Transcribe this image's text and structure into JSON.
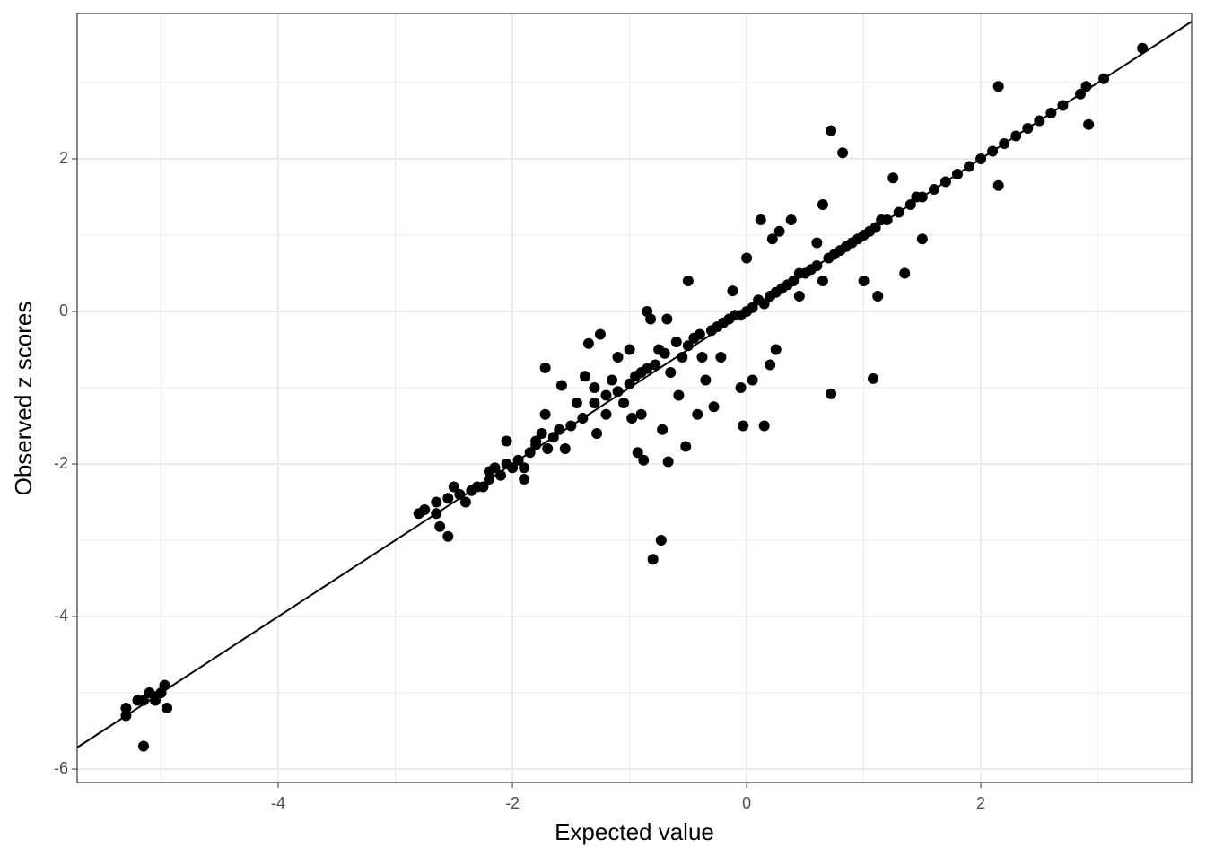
{
  "chart_data": {
    "type": "scatter",
    "x_label": "Expected value",
    "y_label": "Observed z scores",
    "xlim": [
      -5.717,
      3.8
    ],
    "ylim": [
      -6.176,
      3.906
    ],
    "xticks": [
      -4,
      -2,
      0,
      2
    ],
    "yticks": [
      -6,
      -4,
      -2,
      0,
      2
    ],
    "x_minor_ticks": [
      -5,
      -3,
      -1,
      1,
      3
    ],
    "y_minor_ticks": [
      -5,
      -3,
      -1,
      1,
      3
    ],
    "grid": true,
    "color": "#000000",
    "reference_line": {
      "slope": 1,
      "intercept": 0
    },
    "x": [
      -5.3,
      -5.3,
      -5.15,
      -5.1,
      -5.05,
      -5.0,
      -4.97,
      -4.95,
      -5.2,
      -5.15,
      -5.05,
      -2.8,
      -2.75,
      -2.65,
      -2.65,
      -2.62,
      -2.55,
      -2.55,
      -2.5,
      -2.45,
      -2.4,
      -2.35,
      -2.3,
      -2.25,
      -2.2,
      -2.2,
      -2.15,
      -2.1,
      -2.05,
      -2.0,
      -1.95,
      -1.9,
      -1.9,
      -2.05,
      -1.85,
      -1.8,
      -1.8,
      -1.75,
      -1.72,
      -1.7,
      -1.65,
      -1.6,
      -1.58,
      -1.72,
      -1.55,
      -1.5,
      -1.45,
      -1.4,
      -1.38,
      -1.35,
      -1.3,
      -1.3,
      -1.28,
      -1.25,
      -1.2,
      -1.2,
      -1.15,
      -1.1,
      -1.1,
      -1.05,
      -1.0,
      -1.0,
      -0.98,
      -0.95,
      -0.93,
      -0.9,
      -0.9,
      -0.88,
      -0.85,
      -0.85,
      -0.82,
      -0.8,
      -0.78,
      -0.75,
      -0.73,
      -0.72,
      -0.7,
      -0.68,
      -0.67,
      -0.65,
      -0.6,
      -0.58,
      -0.55,
      -0.52,
      -0.5,
      -0.5,
      -0.45,
      -0.42,
      -0.4,
      -0.38,
      -0.35,
      -0.3,
      -0.28,
      -0.25,
      -0.22,
      -0.2,
      -0.15,
      -0.12,
      -0.1,
      -0.05,
      -0.05,
      -0.03,
      0.0,
      0.0,
      0.05,
      0.05,
      0.1,
      0.12,
      0.15,
      0.15,
      0.2,
      0.2,
      0.22,
      0.25,
      0.25,
      0.28,
      0.3,
      0.35,
      0.38,
      0.4,
      0.45,
      0.45,
      0.5,
      0.55,
      0.6,
      0.6,
      0.65,
      0.65,
      0.7,
      0.72,
      0.72,
      0.75,
      0.8,
      0.82,
      0.85,
      0.9,
      0.95,
      1.0,
      1.0,
      1.05,
      1.08,
      1.1,
      1.12,
      1.15,
      1.2,
      1.25,
      1.3,
      1.35,
      1.4,
      1.45,
      1.5,
      1.5,
      1.6,
      1.7,
      1.8,
      1.9,
      2.0,
      2.1,
      2.15,
      2.15,
      2.2,
      2.3,
      2.4,
      2.5,
      2.6,
      2.7,
      2.85,
      2.9,
      2.92,
      3.05,
      3.38
    ],
    "y": [
      -5.2,
      -5.3,
      -5.1,
      -5.0,
      -5.05,
      -5.0,
      -4.9,
      -5.2,
      -5.1,
      -5.7,
      -5.1,
      -2.65,
      -2.6,
      -2.5,
      -2.65,
      -2.82,
      -2.95,
      -2.45,
      -2.3,
      -2.4,
      -2.5,
      -2.35,
      -2.3,
      -2.3,
      -2.2,
      -2.1,
      -2.05,
      -2.15,
      -2.0,
      -2.05,
      -1.95,
      -2.05,
      -2.2,
      -1.7,
      -1.85,
      -1.7,
      -1.75,
      -1.6,
      -1.35,
      -1.8,
      -1.65,
      -1.55,
      -0.97,
      -0.74,
      -1.8,
      -1.5,
      -1.2,
      -1.4,
      -0.85,
      -0.42,
      -1.0,
      -1.2,
      -1.6,
      -0.3,
      -1.1,
      -1.35,
      -0.9,
      -1.05,
      -0.6,
      -1.2,
      -0.95,
      -0.5,
      -1.4,
      -0.85,
      -1.85,
      -0.8,
      -1.35,
      -1.95,
      -0.75,
      0.0,
      -0.1,
      -3.25,
      -0.7,
      -0.5,
      -3.0,
      -1.55,
      -0.55,
      -0.1,
      -1.97,
      -0.8,
      -0.4,
      -1.1,
      -0.6,
      -1.77,
      -0.45,
      0.4,
      -0.35,
      -1.35,
      -0.3,
      -0.6,
      -0.9,
      -0.25,
      -1.25,
      -0.2,
      -0.6,
      -0.15,
      -0.1,
      0.27,
      -0.05,
      -1.0,
      -0.05,
      -1.5,
      0.0,
      0.7,
      0.05,
      -0.9,
      0.15,
      1.2,
      -1.5,
      0.1,
      0.2,
      -0.7,
      0.95,
      0.25,
      -0.5,
      1.05,
      0.3,
      0.35,
      1.2,
      0.4,
      0.5,
      0.2,
      0.5,
      0.55,
      0.6,
      0.9,
      1.4,
      0.4,
      0.7,
      2.37,
      -1.08,
      0.75,
      0.8,
      2.08,
      0.85,
      0.9,
      0.95,
      1.0,
      0.4,
      1.05,
      -0.88,
      1.1,
      0.2,
      1.2,
      1.2,
      1.75,
      1.3,
      0.5,
      1.4,
      1.5,
      1.5,
      0.95,
      1.6,
      1.7,
      1.8,
      1.9,
      2.0,
      2.1,
      1.65,
      2.95,
      2.2,
      2.3,
      2.4,
      2.5,
      2.6,
      2.7,
      2.85,
      2.95,
      2.45,
      3.05,
      3.45
    ]
  }
}
